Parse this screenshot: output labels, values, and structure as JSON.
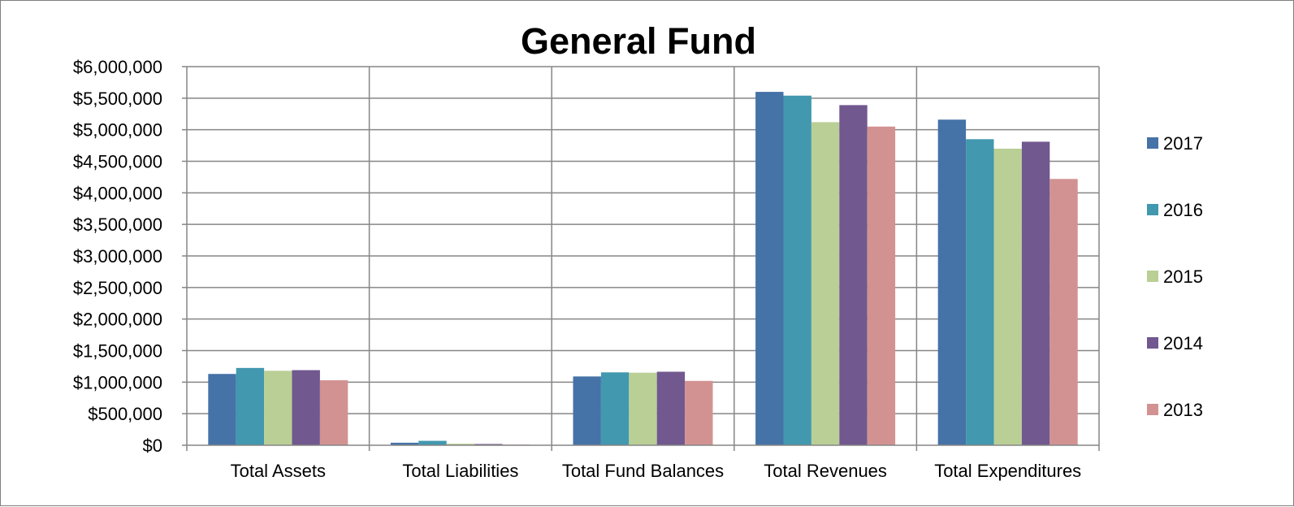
{
  "chart_data": {
    "type": "bar",
    "title": "General Fund",
    "xlabel": "",
    "ylabel": "",
    "categories": [
      "Total Assets",
      "Total Liabilities",
      "Total Fund Balances",
      "Total Revenues",
      "Total Expenditures"
    ],
    "series": [
      {
        "name": "2017",
        "color": "#4572a7",
        "values": [
          1130000,
          40000,
          1090000,
          5600000,
          5160000
        ]
      },
      {
        "name": "2016",
        "color": "#4198af",
        "values": [
          1225000,
          70000,
          1155000,
          5540000,
          4850000
        ]
      },
      {
        "name": "2015",
        "color": "#bacf95",
        "values": [
          1180000,
          25000,
          1150000,
          5120000,
          4700000
        ]
      },
      {
        "name": "2014",
        "color": "#71588f",
        "values": [
          1190000,
          20000,
          1165000,
          5390000,
          4810000
        ]
      },
      {
        "name": "2013",
        "color": "#d39292",
        "values": [
          1030000,
          10000,
          1020000,
          5050000,
          4220000
        ]
      }
    ],
    "ylim": [
      0,
      6000000
    ],
    "ytick_step": 500000,
    "ytick_labels": [
      "$0",
      "$500,000",
      "$1,000,000",
      "$1,500,000",
      "$2,000,000",
      "$2,500,000",
      "$3,000,000",
      "$3,500,000",
      "$4,000,000",
      "$4,500,000",
      "$5,000,000",
      "$5,500,000",
      "$6,000,000"
    ],
    "grid": true,
    "legend_position": "right"
  }
}
